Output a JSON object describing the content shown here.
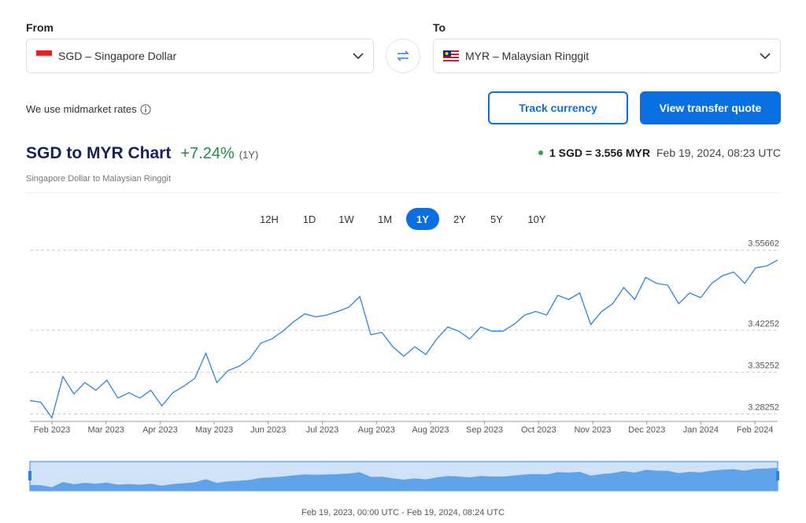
{
  "from": {
    "label": "From",
    "currency": "SGD – Singapore Dollar"
  },
  "to": {
    "label": "To",
    "currency": "MYR – Malaysian Ringgit"
  },
  "note": "We use midmarket rates",
  "buttons": {
    "track": "Track currency",
    "quote": "View transfer quote"
  },
  "rate": {
    "text": "1 SGD = 3.556 MYR",
    "time": "Feb 19, 2024, 08:23 UTC"
  },
  "ranges": [
    "12H",
    "1D",
    "1W",
    "1M",
    "1Y",
    "2Y",
    "5Y",
    "10Y"
  ],
  "selected_range": 4,
  "chart_data": {
    "type": "line",
    "title": "SGD to MYR Chart",
    "change": "+7.24%",
    "period": "(1Y)",
    "subtitle": "Singapore Dollar to Malaysian Ringgit",
    "color": "#2a85e0",
    "x_tick_labels": [
      "Feb 2023",
      "Mar 2023",
      "Apr 2023",
      "May 2023",
      "Jun 2023",
      "Jul 2023",
      "Aug 2023",
      "Aug 2023",
      "Sep 2023",
      "Oct 2023",
      "Nov 2023",
      "Dec 2023",
      "Jan 2024",
      "Feb 2024"
    ],
    "values": [
      3.305,
      3.302,
      3.276,
      3.345,
      3.316,
      3.335,
      3.322,
      3.339,
      3.309,
      3.318,
      3.309,
      3.322,
      3.296,
      3.318,
      3.329,
      3.342,
      3.384,
      3.335,
      3.355,
      3.362,
      3.375,
      3.401,
      3.408,
      3.421,
      3.437,
      3.45,
      3.445,
      3.448,
      3.454,
      3.461,
      3.479,
      3.415,
      3.419,
      3.395,
      3.379,
      3.395,
      3.382,
      3.408,
      3.428,
      3.421,
      3.408,
      3.428,
      3.421,
      3.421,
      3.432,
      3.448,
      3.454,
      3.448,
      3.481,
      3.474,
      3.485,
      3.432,
      3.454,
      3.467,
      3.494,
      3.474,
      3.511,
      3.501,
      3.498,
      3.467,
      3.485,
      3.477,
      3.501,
      3.514,
      3.52,
      3.501,
      3.527,
      3.53,
      3.54
    ],
    "ylim": [
      3.27,
      3.56
    ],
    "yticks": [
      3.28252,
      3.35252,
      3.42252,
      3.55662
    ],
    "grid": true,
    "range_text": "Feb 19, 2023, 00:00 UTC - Feb 19, 2024, 08:24 UTC"
  }
}
